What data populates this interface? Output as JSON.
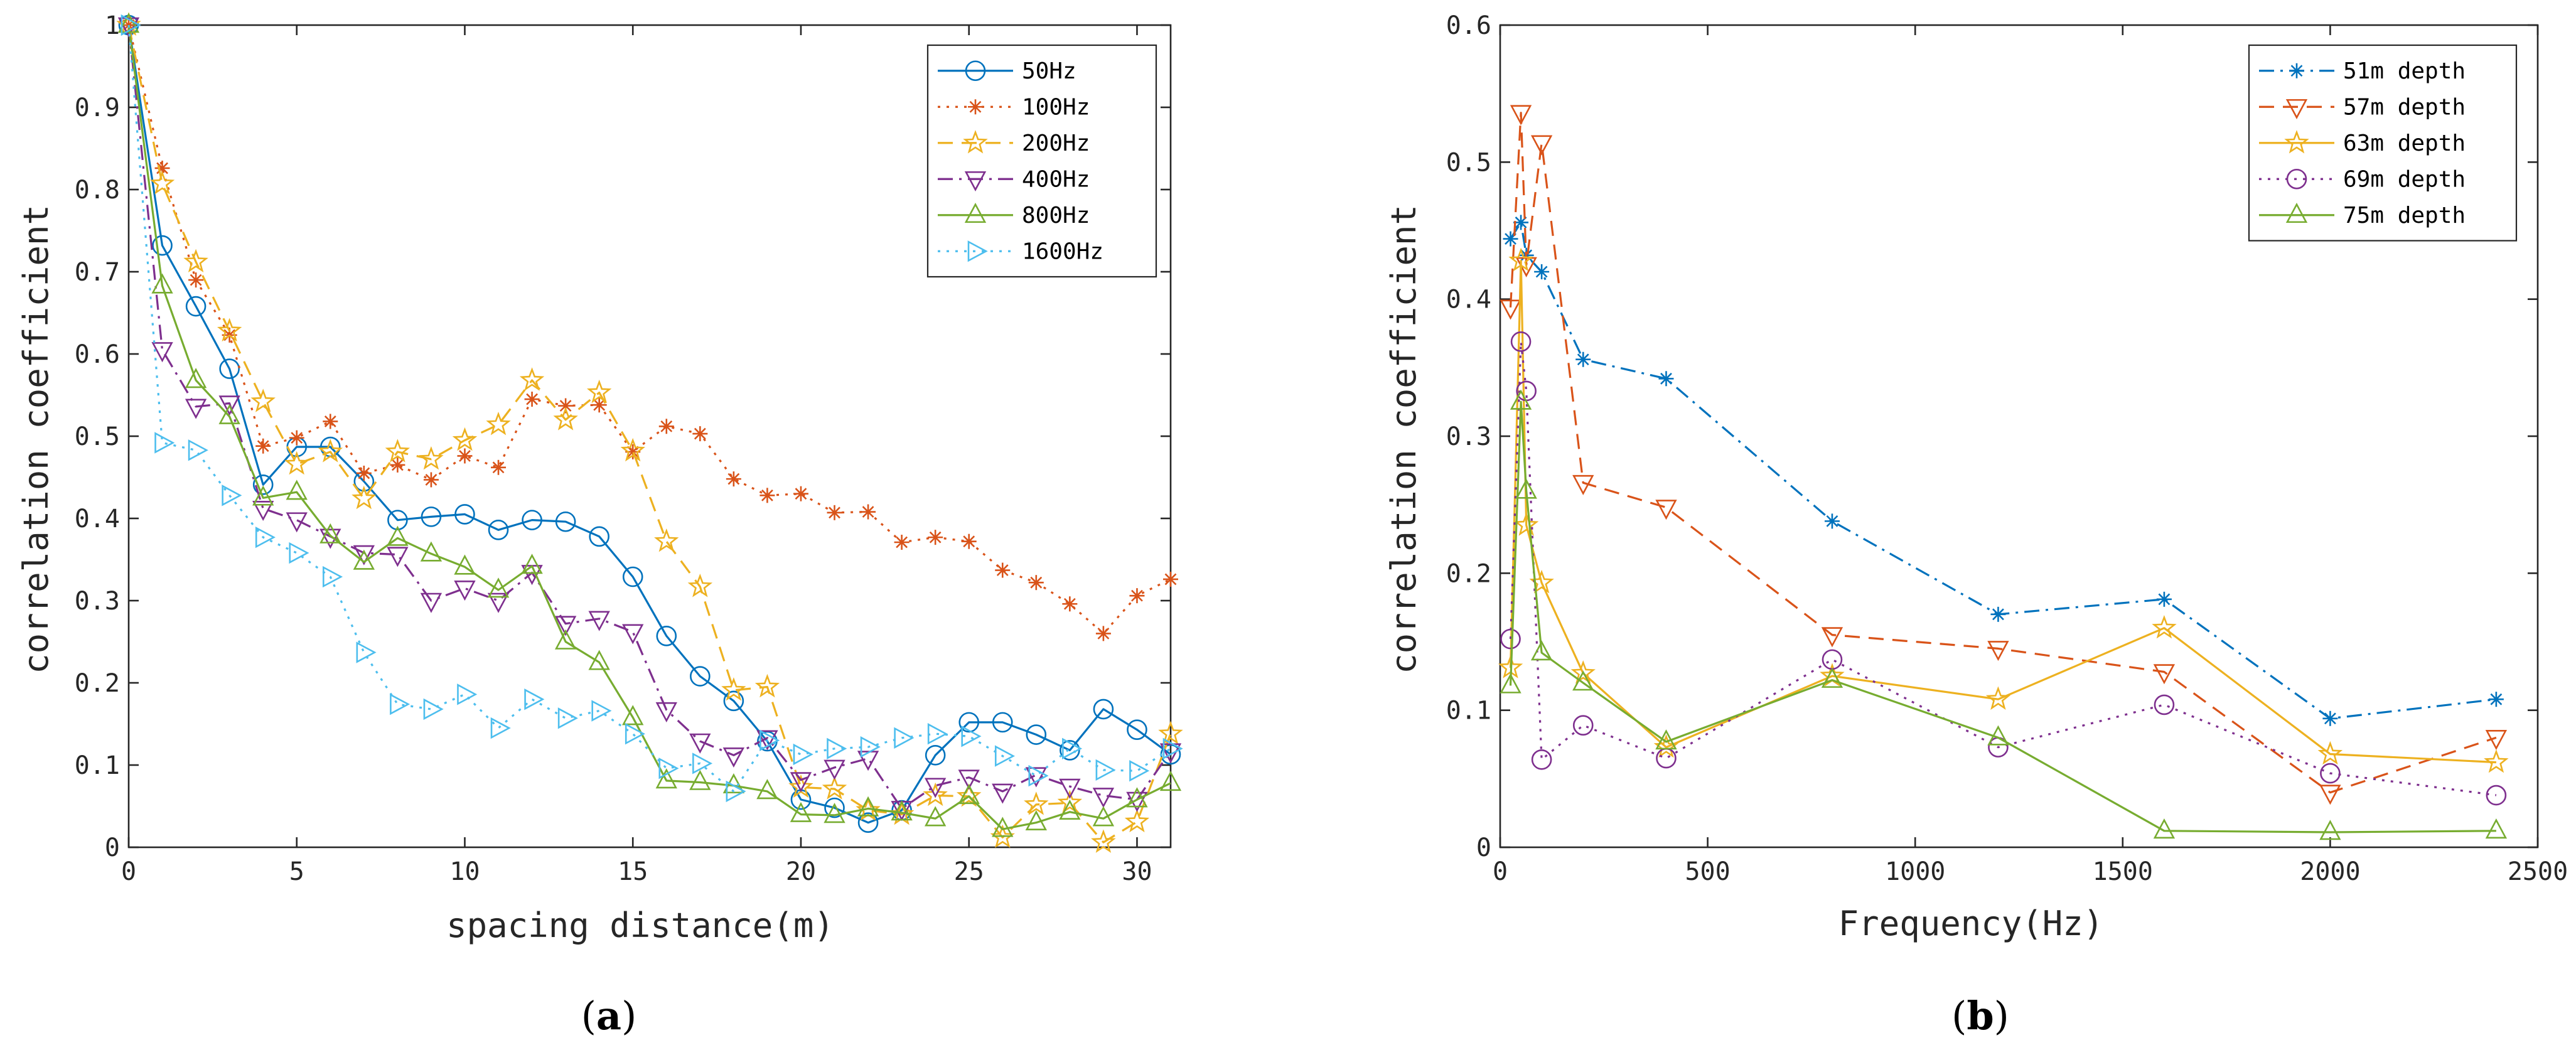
{
  "chart_data": [
    {
      "type": "line",
      "panel_label": "(a)",
      "panel_letter": "a",
      "xlabel": "spacing distance(m)",
      "ylabel": "correlation coefficient",
      "xlim": [
        0,
        31
      ],
      "ylim": [
        0,
        1
      ],
      "xticks": [
        0,
        5,
        10,
        15,
        20,
        25,
        30
      ],
      "xtick_labels": [
        "0",
        "5",
        "10",
        "15",
        "20",
        "25",
        "30"
      ],
      "yticks": [
        0,
        0.1,
        0.2,
        0.3,
        0.4,
        0.5,
        0.6,
        0.7,
        0.8,
        0.9,
        1
      ],
      "ytick_labels": [
        "0",
        "0.1",
        "0.2",
        "0.3",
        "0.4",
        "0.5",
        "0.6",
        "0.7",
        "0.8",
        "0.9",
        "1"
      ],
      "legend_position": "top-right",
      "x": [
        0,
        1,
        2,
        3,
        4,
        5,
        6,
        7,
        8,
        9,
        10,
        11,
        12,
        13,
        14,
        15,
        16,
        17,
        18,
        19,
        20,
        21,
        22,
        23,
        24,
        25,
        26,
        27,
        28,
        29,
        30,
        31
      ],
      "series": [
        {
          "name": "50Hz",
          "color": "#0072BD",
          "marker": "circle",
          "dash": "solid",
          "values": [
            1,
            0.732,
            0.658,
            0.582,
            0.441,
            0.487,
            0.487,
            0.445,
            0.398,
            0.402,
            0.405,
            0.386,
            0.398,
            0.396,
            0.378,
            0.329,
            0.257,
            0.208,
            0.178,
            0.129,
            0.058,
            0.048,
            0.03,
            0.045,
            0.112,
            0.152,
            0.152,
            0.137,
            0.118,
            0.168,
            0.143,
            0.113
          ]
        },
        {
          "name": "100Hz",
          "color": "#D95319",
          "marker": "asterisk",
          "dash": "dot",
          "values": [
            1,
            0.826,
            0.69,
            0.623,
            0.488,
            0.498,
            0.518,
            0.455,
            0.465,
            0.447,
            0.476,
            0.462,
            0.545,
            0.537,
            0.538,
            0.481,
            0.512,
            0.503,
            0.448,
            0.428,
            0.43,
            0.407,
            0.408,
            0.371,
            0.377,
            0.372,
            0.337,
            0.322,
            0.296,
            0.26,
            0.306,
            0.326
          ]
        },
        {
          "name": "200Hz",
          "color": "#EDB120",
          "marker": "pentagram",
          "dash": "dash",
          "values": [
            1,
            0.807,
            0.712,
            0.628,
            0.542,
            0.466,
            0.481,
            0.424,
            0.481,
            0.472,
            0.495,
            0.514,
            0.568,
            0.52,
            0.553,
            0.482,
            0.372,
            0.317,
            0.191,
            0.195,
            0.073,
            0.071,
            0.045,
            0.04,
            0.063,
            0.062,
            0.012,
            0.052,
            0.054,
            0.006,
            0.031,
            0.138
          ]
        },
        {
          "name": "400Hz",
          "color": "#7E2F8E",
          "marker": "triangle-down",
          "dash": "dashdot",
          "values": [
            1,
            0.605,
            0.536,
            0.54,
            0.412,
            0.398,
            0.378,
            0.358,
            0.356,
            0.3,
            0.315,
            0.3,
            0.334,
            0.272,
            0.278,
            0.262,
            0.167,
            0.129,
            0.112,
            0.133,
            0.082,
            0.097,
            0.108,
            0.047,
            0.075,
            0.085,
            0.068,
            0.088,
            0.074,
            0.063,
            0.058,
            0.117
          ]
        },
        {
          "name": "800Hz",
          "color": "#77AC30",
          "marker": "triangle-up",
          "dash": "solid",
          "values": [
            1,
            0.683,
            0.568,
            0.524,
            0.425,
            0.432,
            0.379,
            0.347,
            0.376,
            0.357,
            0.341,
            0.313,
            0.342,
            0.25,
            0.225,
            0.158,
            0.081,
            0.079,
            0.075,
            0.068,
            0.04,
            0.039,
            0.047,
            0.042,
            0.035,
            0.062,
            0.022,
            0.03,
            0.043,
            0.035,
            0.058,
            0.078
          ]
        },
        {
          "name": "1600Hz",
          "color": "#4DBEEE",
          "marker": "triangle-right",
          "dash": "dot",
          "values": [
            1,
            0.492,
            0.483,
            0.428,
            0.377,
            0.358,
            0.329,
            0.237,
            0.174,
            0.168,
            0.186,
            0.145,
            0.18,
            0.157,
            0.166,
            0.138,
            0.096,
            0.102,
            0.068,
            0.13,
            0.113,
            0.12,
            0.122,
            0.133,
            0.138,
            0.135,
            0.111,
            0.087,
            0.12,
            0.094,
            0.093,
            0.12
          ]
        }
      ]
    },
    {
      "type": "line",
      "panel_label": "(b)",
      "panel_letter": "b",
      "xlabel": "Frequency(Hz)",
      "ylabel": "correlation coefficient",
      "xlim": [
        0,
        2500
      ],
      "ylim": [
        0,
        0.6
      ],
      "xticks": [
        0,
        500,
        1000,
        1500,
        2000,
        2500
      ],
      "xtick_labels": [
        "0",
        "500",
        "1000",
        "1500",
        "2000",
        "2500"
      ],
      "yticks": [
        0,
        0.1,
        0.2,
        0.3,
        0.4,
        0.5,
        0.6
      ],
      "ytick_labels": [
        "0",
        "0.1",
        "0.2",
        "0.3",
        "0.4",
        "0.5",
        "0.6"
      ],
      "legend_position": "top-right",
      "x": [
        25,
        50,
        63,
        100,
        200,
        400,
        800,
        1200,
        1600,
        2000,
        2400
      ],
      "series": [
        {
          "name": "51m depth",
          "color": "#0072BD",
          "marker": "asterisk",
          "dash": "dashdot",
          "values": [
            0.444,
            0.456,
            0.432,
            0.42,
            0.356,
            0.342,
            0.238,
            0.17,
            0.181,
            0.094,
            0.108
          ]
        },
        {
          "name": "57m depth",
          "color": "#D95319",
          "marker": "triangle-down",
          "dash": "dash",
          "values": [
            0.394,
            0.536,
            0.425,
            0.514,
            0.266,
            0.248,
            0.155,
            0.145,
            0.128,
            0.04,
            0.08
          ]
        },
        {
          "name": "63m depth",
          "color": "#EDB120",
          "marker": "pentagram",
          "dash": "solid",
          "values": [
            0.131,
            0.428,
            0.235,
            0.193,
            0.127,
            0.073,
            0.125,
            0.108,
            0.16,
            0.068,
            0.062
          ]
        },
        {
          "name": "69m depth",
          "color": "#7E2F8E",
          "marker": "circle",
          "dash": "dot",
          "values": [
            0.152,
            0.369,
            0.333,
            0.064,
            0.089,
            0.065,
            0.137,
            0.073,
            0.104,
            0.054,
            0.038
          ]
        },
        {
          "name": "75m depth",
          "color": "#77AC30",
          "marker": "triangle-up",
          "dash": "solid",
          "values": [
            0.118,
            0.325,
            0.26,
            0.142,
            0.12,
            0.077,
            0.122,
            0.08,
            0.012,
            0.011,
            0.012
          ]
        }
      ]
    }
  ]
}
